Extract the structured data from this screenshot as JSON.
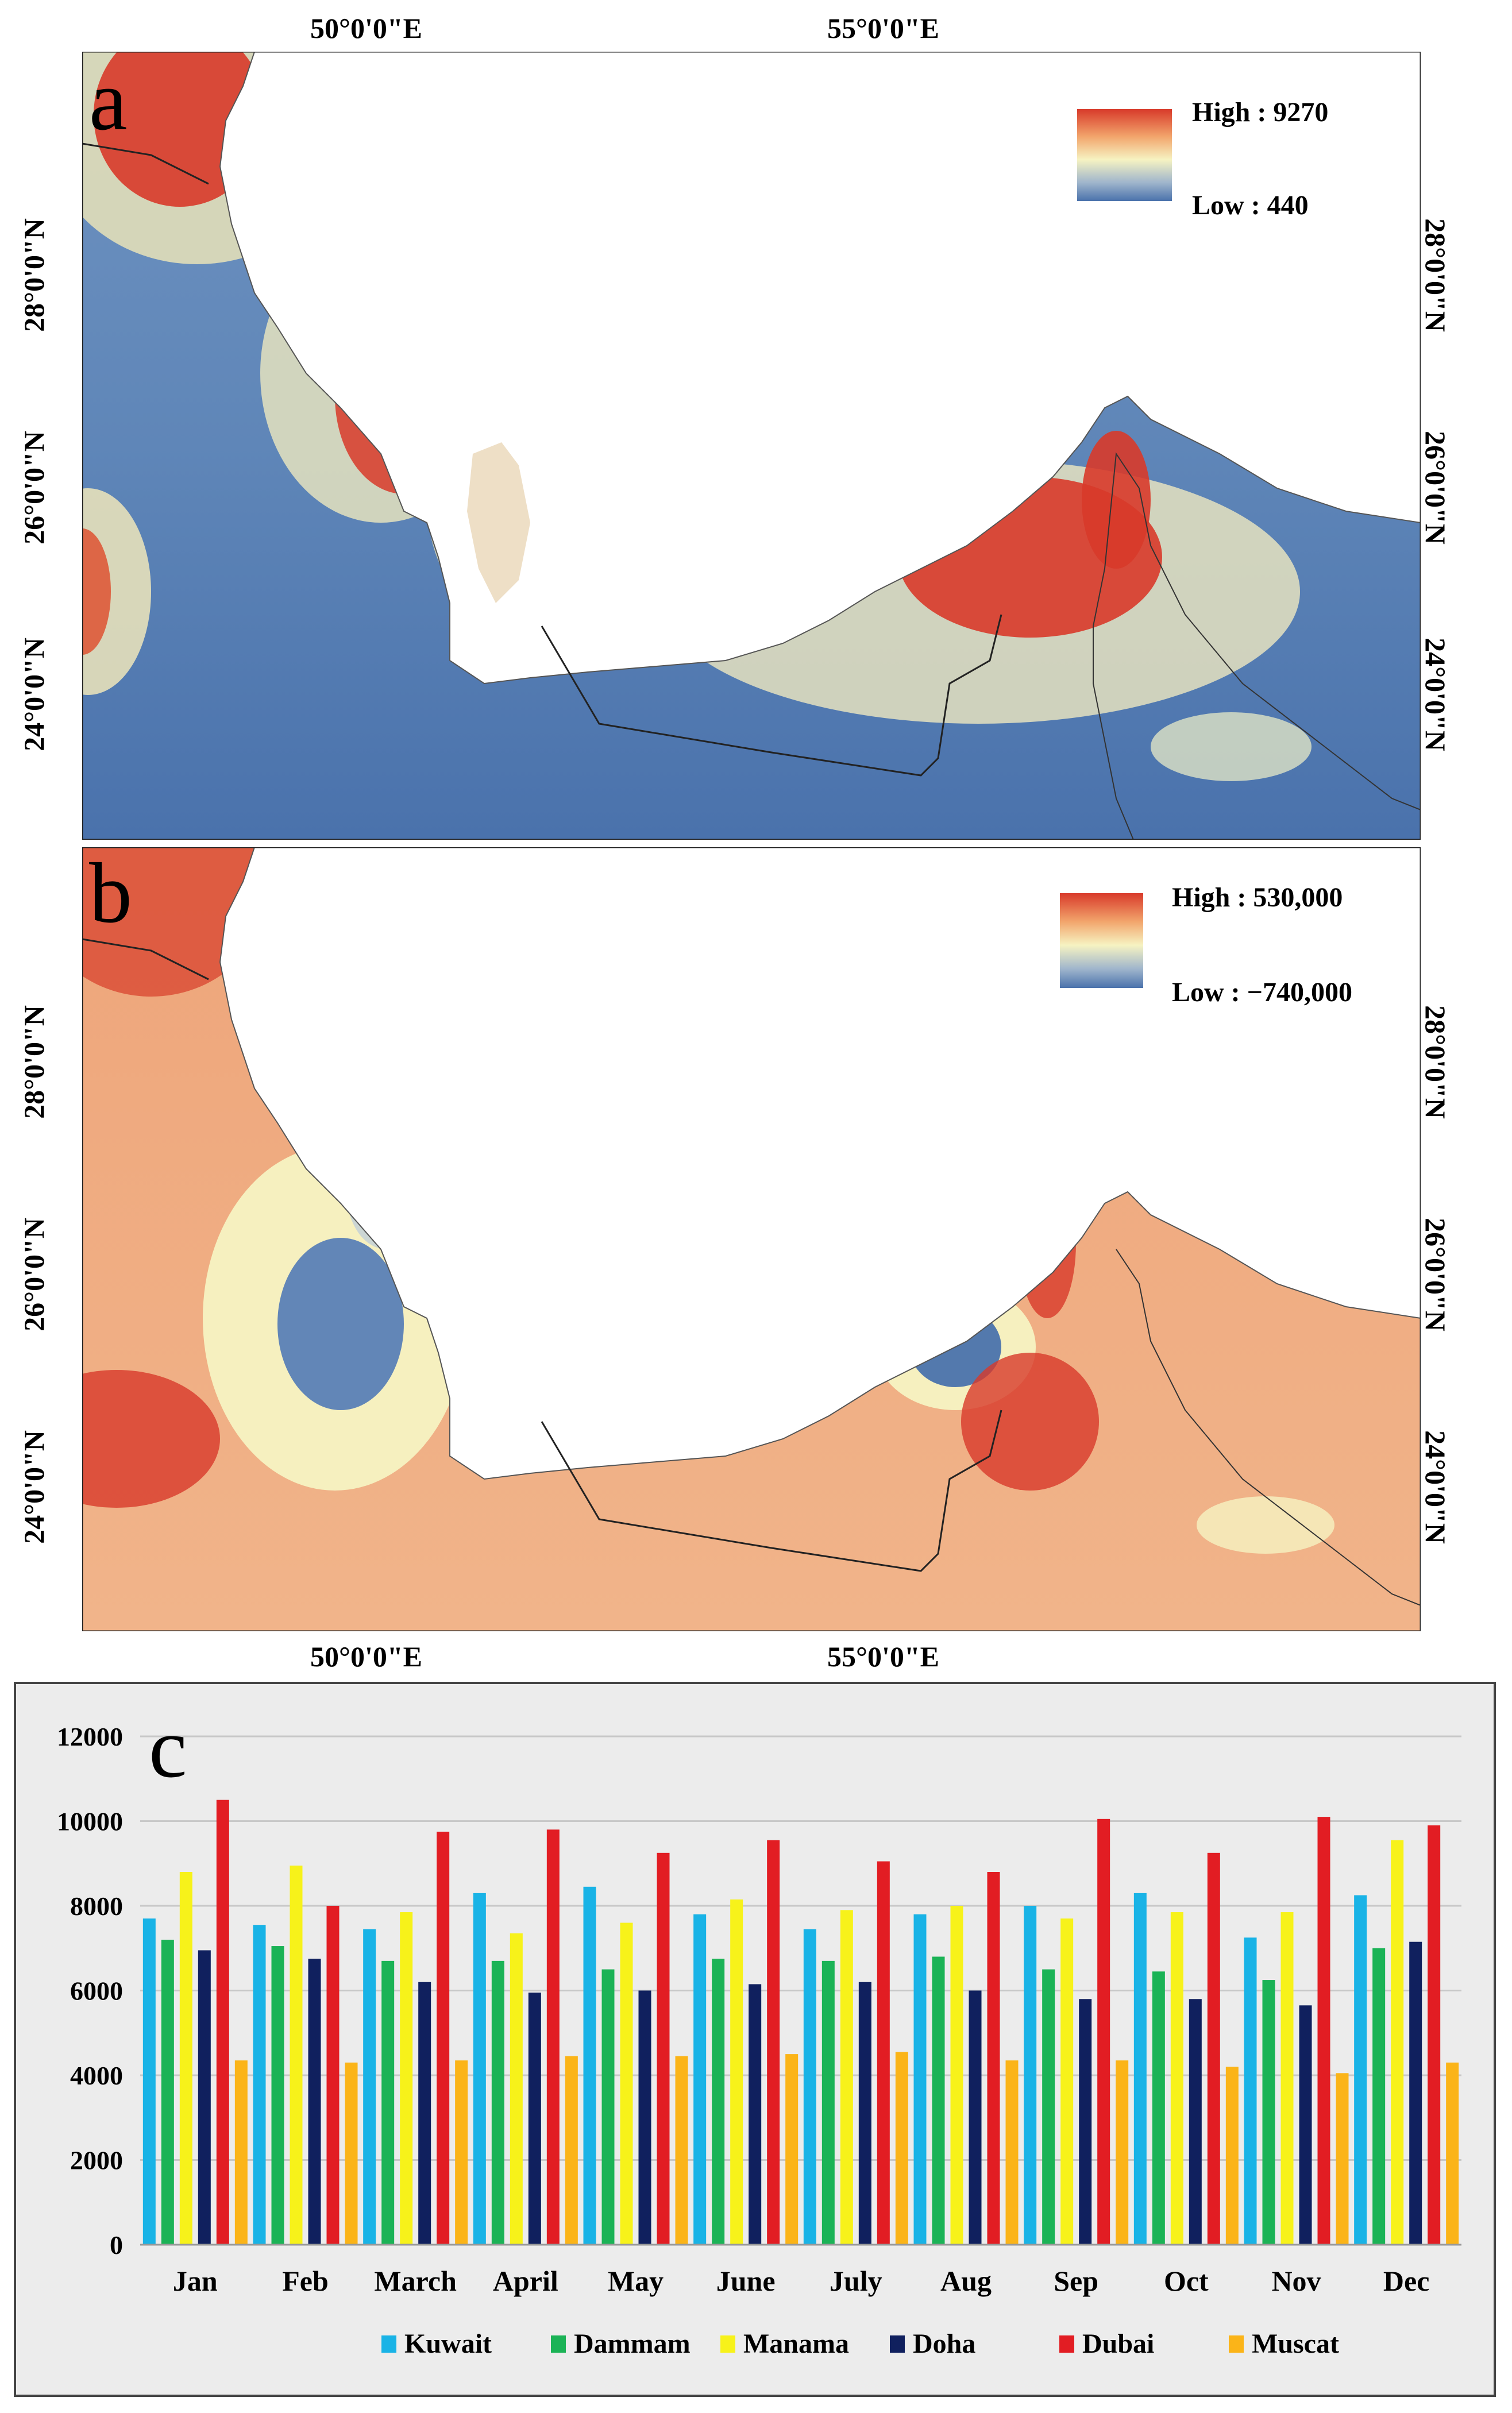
{
  "map_a": {
    "label": "a",
    "legend": {
      "high": "High : 9270",
      "low": "Low : 440"
    },
    "top_lon_labels": [
      "50°0'0\"E",
      "55°0'0\"E"
    ],
    "lat_labels": [
      "28°0'0\"N",
      "26°0'0\"N",
      "24°0'0\"N"
    ]
  },
  "map_b": {
    "label": "b",
    "legend": {
      "high": "High : 530,000",
      "low": "Low : −740,000"
    },
    "bottom_lon_labels": [
      "50°0'0\"E",
      "55°0'0\"E"
    ],
    "lat_labels": [
      "28°0'0\"N",
      "26°0'0\"N",
      "24°0'0\"N"
    ]
  },
  "colors": {
    "high": "#d83a2a",
    "mid": "#f6f3c2",
    "low": "#4a72ac",
    "chart_bg": "#ececec",
    "gridline": "#c8c8c8"
  },
  "chart_data": {
    "type": "bar",
    "panel_label": "c",
    "title": "",
    "xlabel": "",
    "ylabel": "",
    "ylim": [
      0,
      12000
    ],
    "yticks": [
      "0",
      "2000",
      "4000",
      "6000",
      "8000",
      "10000",
      "12000"
    ],
    "grid": true,
    "legend_position": "bottom",
    "categories": [
      "Jan",
      "Feb",
      "March",
      "April",
      "May",
      "June",
      "July",
      "Aug",
      "Sep",
      "Oct",
      "Nov",
      "Dec"
    ],
    "series": [
      {
        "name": "Kuwait",
        "color": "#19b3e6",
        "values": [
          7700,
          7550,
          7450,
          8300,
          8450,
          7800,
          7450,
          7800,
          8000,
          8300,
          7250,
          8250
        ]
      },
      {
        "name": "Dammam",
        "color": "#1bb356",
        "values": [
          7200,
          7050,
          6700,
          6700,
          6500,
          6750,
          6700,
          6800,
          6500,
          6450,
          6250,
          7000
        ]
      },
      {
        "name": "Manama",
        "color": "#f7f21a",
        "values": [
          8800,
          8950,
          7850,
          7350,
          7600,
          8150,
          7900,
          8000,
          7700,
          7850,
          7850,
          9550
        ]
      },
      {
        "name": "Doha",
        "color": "#10205e",
        "values": [
          6950,
          6750,
          6200,
          5950,
          6000,
          6150,
          6200,
          6000,
          5800,
          5800,
          5650,
          7150
        ]
      },
      {
        "name": "Dubai",
        "color": "#e21d23",
        "values": [
          10500,
          8000,
          9750,
          9800,
          9250,
          9550,
          9050,
          8800,
          10050,
          9250,
          10100,
          9900
        ]
      },
      {
        "name": "Muscat",
        "color": "#fbb418",
        "values": [
          4350,
          4300,
          4350,
          4450,
          4450,
          4500,
          4550,
          4350,
          4350,
          4200,
          4050,
          4300
        ]
      }
    ]
  }
}
